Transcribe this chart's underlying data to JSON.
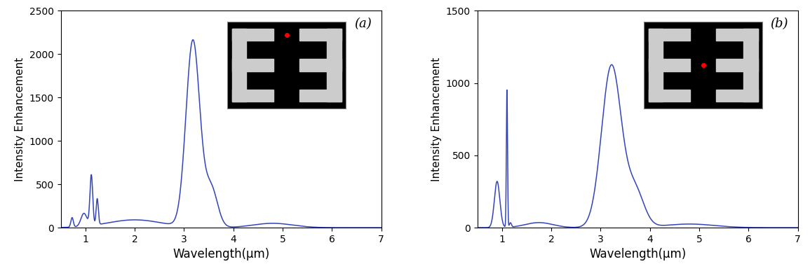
{
  "line_color": "#3344bb",
  "line_width": 1.1,
  "xlabel": "Wavelength(μm)",
  "ylabel": "Intensity Enhancement",
  "xlabel_fontsize": 12,
  "ylabel_fontsize": 11,
  "tick_fontsize": 10,
  "panel_a": {
    "label": "(a)",
    "ylim": [
      0,
      2500
    ],
    "yticks": [
      0,
      500,
      1000,
      1500,
      2000,
      2500
    ],
    "xlim": [
      0.5,
      7
    ],
    "xticks": [
      1,
      2,
      3,
      4,
      5,
      6,
      7
    ]
  },
  "panel_b": {
    "label": "(b)",
    "ylim": [
      0,
      1500
    ],
    "yticks": [
      0,
      500,
      1000,
      1500
    ],
    "xlim": [
      0.5,
      7
    ],
    "xticks": [
      1,
      2,
      3,
      4,
      5,
      6,
      7
    ]
  }
}
